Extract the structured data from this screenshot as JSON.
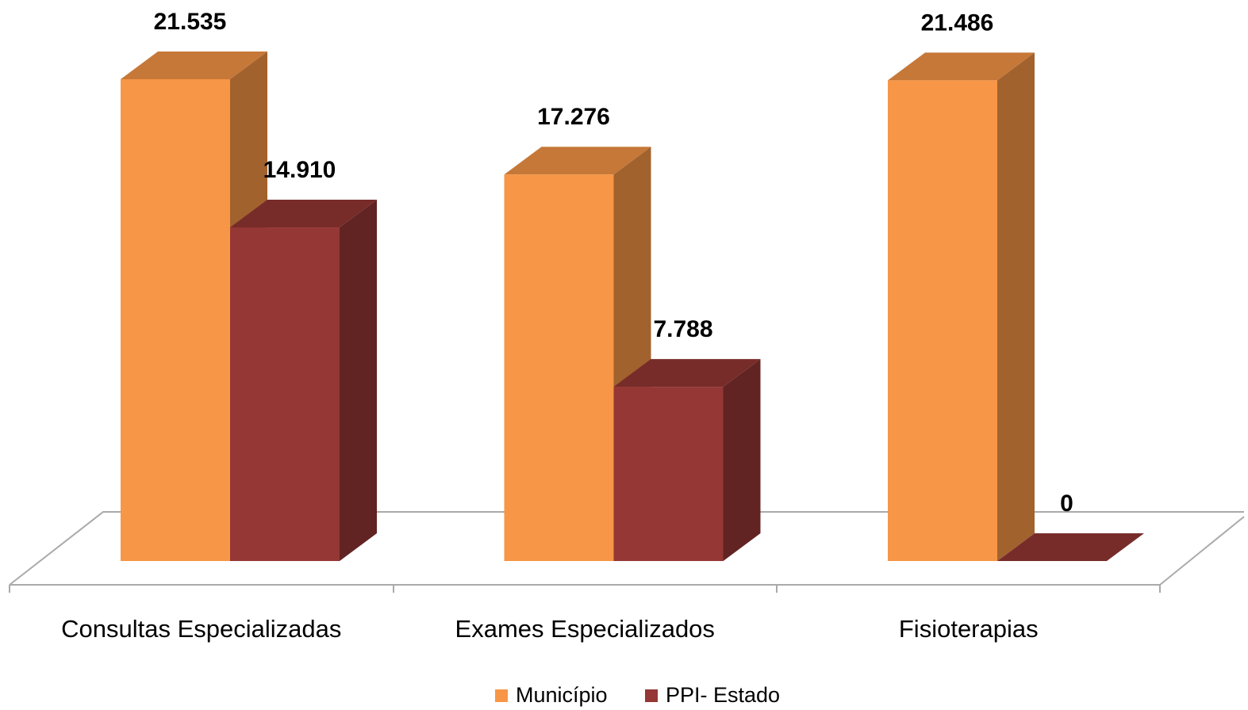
{
  "chart_data": {
    "type": "bar3d",
    "categories": [
      "Consultas Especializadas",
      "Exames Especializados",
      "Fisioterapias"
    ],
    "series": [
      {
        "name": "Município",
        "color": "#f79646",
        "values": [
          21535,
          17276,
          21486
        ],
        "value_labels": [
          "21.535",
          "17.276",
          "21.486"
        ]
      },
      {
        "name": "PPI- Estado",
        "color": "#953735",
        "values": [
          14910,
          7788,
          0
        ],
        "value_labels": [
          "14.910",
          "7.788",
          "0"
        ]
      }
    ]
  }
}
